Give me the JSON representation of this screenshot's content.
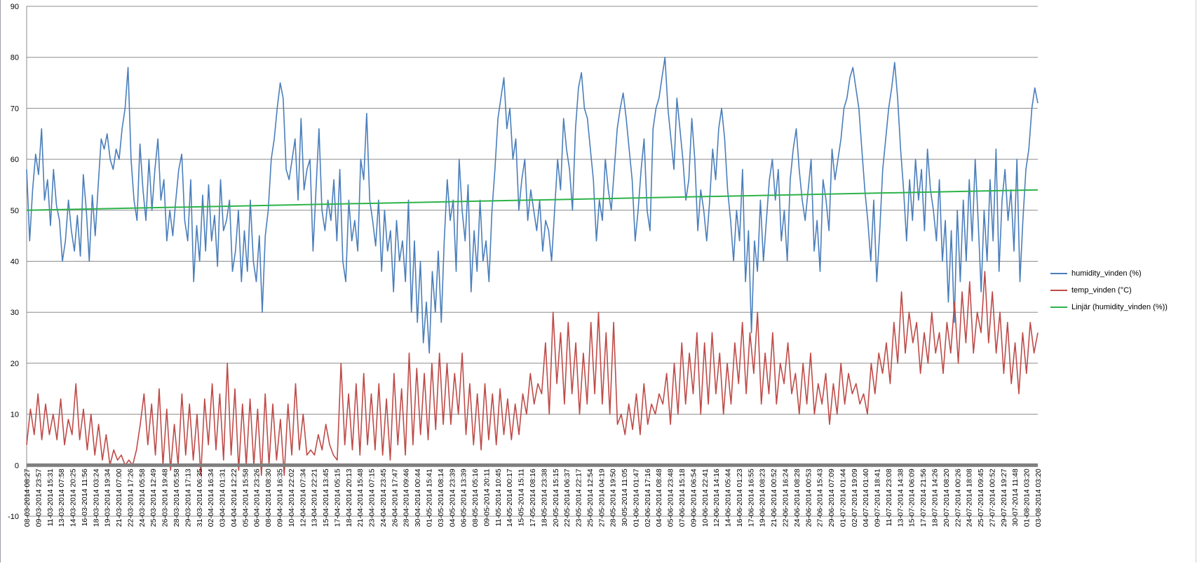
{
  "chart_data": {
    "type": "line",
    "ylim": [
      -10,
      90
    ],
    "yticks": [
      -10,
      0,
      10,
      20,
      30,
      40,
      50,
      60,
      70,
      80,
      90
    ],
    "grid": true,
    "legend_position": "right",
    "x_tick_labels": [
      "08-03-2014 08:27",
      "09-03-2014 23:57",
      "11-03-2014 15:31",
      "13-03-2014 07:58",
      "14-03-2014 20:25",
      "16-03-2014 11:56",
      "18-03-2014 03:24",
      "19-03-2014 19:34",
      "21-03-2014 07:00",
      "22-03-2014 17:26",
      "24-03-2014 05:58",
      "25-03-2014 12:49",
      "26-03-2014 19:48",
      "28-03-2014 05:58",
      "29-03-2014 17:13",
      "31-03-2014 06:35",
      "02-04-2014 16:34",
      "03-04-2014 01:31",
      "04-04-2014 12:22",
      "05-04-2014 15:58",
      "06-04-2014 23:26",
      "08-04-2014 08:30",
      "09-04-2014 16:35",
      "10-04-2014 22:02",
      "12-04-2014 07:34",
      "13-04-2014 22:21",
      "15-04-2014 13:45",
      "17-04-2014 05:15",
      "18-04-2014 20:13",
      "21-04-2014 15:48",
      "23-04-2014 07:15",
      "24-04-2014 23:45",
      "26-04-2014 17:47",
      "28-04-2014 09:46",
      "30-04-2014 00:44",
      "01-05-2014 15:41",
      "03-05-2014 08:14",
      "04-05-2014 23:39",
      "06-05-2014 13:39",
      "08-05-2014 05:16",
      "09-05-2014 20:11",
      "11-05-2014 10:45",
      "14-05-2014 00:17",
      "15-05-2014 15:11",
      "17-05-2014 08:16",
      "18-05-2014 23:38",
      "20-05-2014 15:15",
      "22-05-2014 06:37",
      "23-05-2014 22:17",
      "25-05-2014 12:54",
      "27-05-2014 04:19",
      "28-05-2014 19:50",
      "30-05-2014 11:05",
      "01-06-2014 01:47",
      "02-06-2014 17:16",
      "04-06-2014 08:48",
      "05-06-2014 23:48",
      "07-06-2014 15:18",
      "09-06-2014 06:54",
      "10-06-2014 22:41",
      "12-06-2014 14:16",
      "14-06-2014 05:44",
      "16-06-2014 01:23",
      "17-06-2014 16:55",
      "19-06-2014 08:23",
      "21-06-2014 00:52",
      "22-06-2014 16:24",
      "24-06-2014 08:28",
      "26-06-2014 00:53",
      "27-06-2014 15:43",
      "29-06-2014 07:09",
      "01-07-2014 01:44",
      "02-07-2014 19:09",
      "04-07-2014 01:40",
      "09-07-2014 18:41",
      "11-07-2014 23:08",
      "13-07-2014 14:38",
      "15-07-2014 06:09",
      "17-07-2014 21:56",
      "18-07-2014 14:26",
      "20-07-2014 08:20",
      "22-07-2014 00:26",
      "24-07-2014 18:08",
      "25-07-2014 09:45",
      "27-07-2014 00:52",
      "29-07-2014 19:27",
      "30-07-2014 11:48",
      "01-08-2014 03:20",
      "03-08-2014 03:20"
    ],
    "series": [
      {
        "name": "humidity_vinden (%)",
        "color": "#4a7ebb",
        "y": [
          58,
          44,
          54,
          61,
          57,
          66,
          52,
          56,
          47,
          58,
          51,
          48,
          40,
          44,
          52,
          46,
          42,
          49,
          41,
          57,
          50,
          40,
          53,
          45,
          55,
          64,
          62,
          65,
          60,
          58,
          62,
          60,
          66,
          70,
          78,
          60,
          52,
          48,
          63,
          54,
          48,
          60,
          50,
          58,
          64,
          52,
          56,
          44,
          50,
          45,
          52,
          58,
          61,
          48,
          44,
          56,
          36,
          47,
          40,
          53,
          42,
          55,
          44,
          49,
          39,
          56,
          46,
          48,
          52,
          38,
          42,
          50,
          36,
          46,
          38,
          52,
          40,
          36,
          45,
          30,
          45,
          50,
          60,
          64,
          70,
          75,
          72,
          58,
          56,
          60,
          64,
          52,
          68,
          54,
          58,
          60,
          42,
          54,
          66,
          50,
          46,
          52,
          48,
          56,
          44,
          58,
          40,
          36,
          52,
          44,
          48,
          42,
          60,
          56,
          69,
          52,
          48,
          43,
          52,
          38,
          50,
          42,
          46,
          34,
          48,
          40,
          44,
          36,
          52,
          30,
          44,
          28,
          40,
          24,
          32,
          22,
          38,
          30,
          42,
          28,
          44,
          56,
          48,
          52,
          38,
          60,
          50,
          44,
          55,
          34,
          46,
          38,
          52,
          40,
          44,
          36,
          50,
          58,
          68,
          72,
          76,
          66,
          70,
          60,
          64,
          50,
          56,
          60,
          48,
          54,
          50,
          46,
          52,
          42,
          48,
          46,
          40,
          50,
          60,
          54,
          68,
          62,
          58,
          50,
          66,
          74,
          77,
          70,
          68,
          62,
          56,
          44,
          52,
          48,
          60,
          54,
          50,
          58,
          66,
          70,
          73,
          68,
          62,
          56,
          44,
          50,
          58,
          64,
          50,
          46,
          66,
          70,
          72,
          76,
          80,
          70,
          64,
          58,
          72,
          66,
          60,
          52,
          56,
          68,
          60,
          46,
          54,
          50,
          44,
          52,
          62,
          56,
          66,
          70,
          64,
          54,
          48,
          40,
          50,
          44,
          58,
          36,
          46,
          26,
          44,
          38,
          52,
          40,
          48,
          56,
          60,
          52,
          58,
          44,
          50,
          40,
          56,
          62,
          66,
          58,
          52,
          48,
          54,
          60,
          42,
          48,
          38,
          56,
          52,
          46,
          62,
          56,
          60,
          64,
          70,
          72,
          76,
          78,
          74,
          70,
          62,
          54,
          48,
          40,
          52,
          36,
          46,
          58,
          64,
          70,
          74,
          79,
          72,
          62,
          54,
          44,
          56,
          48,
          60,
          52,
          58,
          46,
          62,
          54,
          50,
          44,
          56,
          40,
          48,
          32,
          46,
          28,
          50,
          36,
          52,
          40,
          56,
          44,
          60,
          48,
          34,
          50,
          40,
          56,
          44,
          62,
          38,
          52,
          58,
          48,
          54,
          42,
          60,
          36,
          48,
          58,
          62,
          70,
          74,
          71
        ]
      },
      {
        "name": "temp_vinden (°C)",
        "color": "#be4b48",
        "y": [
          4,
          11,
          6,
          14,
          5,
          12,
          6,
          10,
          5,
          13,
          4,
          9,
          6,
          16,
          5,
          11,
          3,
          10,
          2,
          8,
          1,
          6,
          0,
          3,
          1,
          2,
          0,
          1,
          0,
          3,
          8,
          14,
          4,
          12,
          2,
          15,
          0,
          11,
          -1,
          8,
          0,
          14,
          2,
          12,
          1,
          10,
          -2,
          13,
          4,
          16,
          3,
          14,
          1,
          20,
          2,
          15,
          -1,
          12,
          0,
          13,
          0,
          11,
          -2,
          14,
          0,
          12,
          1,
          9,
          -2,
          12,
          2,
          16,
          3,
          10,
          2,
          3,
          2,
          6,
          3,
          8,
          4,
          2,
          1,
          20,
          4,
          14,
          3,
          16,
          2,
          18,
          4,
          14,
          3,
          16,
          2,
          13,
          1,
          18,
          4,
          15,
          2,
          22,
          4,
          19,
          6,
          18,
          5,
          20,
          7,
          22,
          8,
          20,
          8,
          18,
          10,
          22,
          6,
          16,
          4,
          14,
          3,
          16,
          5,
          14,
          4,
          15,
          6,
          13,
          5,
          12,
          6,
          14,
          10,
          18,
          12,
          16,
          14,
          24,
          10,
          30,
          16,
          26,
          12,
          28,
          14,
          24,
          10,
          22,
          12,
          28,
          14,
          30,
          12,
          26,
          10,
          28,
          8,
          10,
          6,
          12,
          7,
          14,
          6,
          16,
          8,
          12,
          10,
          14,
          12,
          18,
          8,
          20,
          10,
          24,
          12,
          22,
          14,
          26,
          10,
          24,
          12,
          26,
          14,
          22,
          10,
          20,
          12,
          24,
          16,
          28,
          14,
          26,
          18,
          30,
          12,
          22,
          14,
          26,
          12,
          20,
          16,
          24,
          14,
          18,
          10,
          20,
          12,
          22,
          10,
          16,
          12,
          18,
          8,
          16,
          10,
          20,
          12,
          18,
          14,
          16,
          12,
          14,
          10,
          20,
          14,
          22,
          18,
          24,
          16,
          28,
          20,
          34,
          22,
          30,
          24,
          28,
          18,
          26,
          20,
          30,
          22,
          26,
          18,
          28,
          22,
          32,
          20,
          34,
          24,
          36,
          22,
          30,
          26,
          38,
          24,
          34,
          22,
          30,
          18,
          28,
          16,
          24,
          14,
          26,
          18,
          28,
          22,
          26
        ]
      },
      {
        "name": "Linjär (humidity_vinden (%))",
        "color": "#2db34a",
        "y": [
          50,
          54
        ],
        "trendline": true
      }
    ]
  }
}
